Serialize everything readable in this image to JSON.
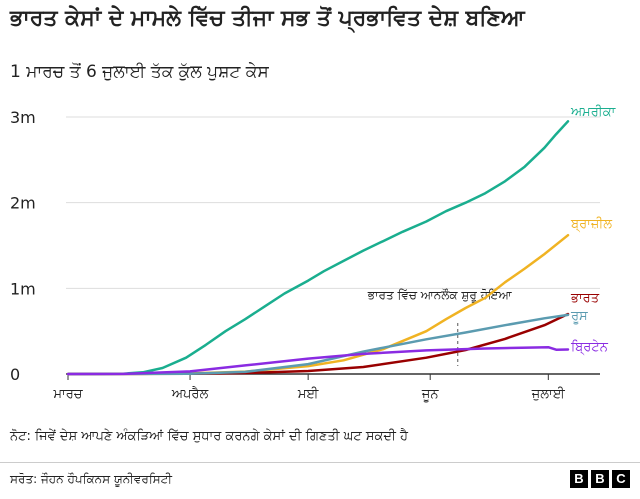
{
  "header": {
    "title": "ਭਾਰਤ ਕੇਸਾਂ ਦੇ ਮਾਮਲੇ ਵਿੱਚ ਤੀਜਾ ਸਭ ਤੋਂ ਪ੍ਰਭਾਵਿਤ ਦੇਸ਼ ਬਣਿਆ",
    "subtitle": "1 ਮਾਰਚ ਤੋਂ 6 ਜੁਲਾਈ ਤੱਕ ਕੁੱਲ ਪੁਸ਼ਟ ਕੇਸ"
  },
  "footer": {
    "note": "ਨੋਟ: ਜਿਵੇਂ ਦੇਸ਼ ਆਪਣੇ ਅੰਕੜਿਆਂ ਵਿੱਚ ਸੁਧਾਰ ਕਰਨਗੇ ਕੇਸਾਂ ਦੀ ਗਿਣਤੀ ਘਟ ਸਕਦੀ ਹੈ",
    "source": "ਸਰੋਤ: ਜੌਹਨ ਹੌਪਕਿਨਸ ਯੂਨੀਵਰਸਿਟੀ",
    "logo": [
      "B",
      "B",
      "C"
    ]
  },
  "chart_data": {
    "type": "line",
    "x_unit": "date",
    "x_range": [
      "2020-03-01",
      "2020-07-06"
    ],
    "ylim": [
      0,
      3000000
    ],
    "y_ticks": [
      {
        "value": 0,
        "label": "0"
      },
      {
        "value": 1000000,
        "label": "1m"
      },
      {
        "value": 2000000,
        "label": "2m"
      },
      {
        "value": 3000000,
        "label": "3m"
      }
    ],
    "x_ticks": [
      {
        "date": "2020-03-01",
        "label": "ਮਾਰਚ"
      },
      {
        "date": "2020-04-01",
        "label": "ਅਪਰੈਲ"
      },
      {
        "date": "2020-05-01",
        "label": "ਮਈ"
      },
      {
        "date": "2020-06-01",
        "label": "ਜੂਨ"
      },
      {
        "date": "2020-07-01",
        "label": "ਜੁਲਾਈ"
      }
    ],
    "grid": "horizontal",
    "annotation": {
      "date": "2020-06-08",
      "text": "ਭਾਰਤ ਵਿੱਚ ਆਨਲੌਕ ਸ਼ੁਰੂ ਹੋਇਆ"
    },
    "series": [
      {
        "name": "ਅਮਰੀਕਾ",
        "color": "#1aae8f",
        "points": [
          [
            "2020-03-01",
            0
          ],
          [
            "2020-03-10",
            1000
          ],
          [
            "2020-03-15",
            4000
          ],
          [
            "2020-03-20",
            20000
          ],
          [
            "2020-03-25",
            70000
          ],
          [
            "2020-03-31",
            190000
          ],
          [
            "2020-04-05",
            340000
          ],
          [
            "2020-04-10",
            500000
          ],
          [
            "2020-04-15",
            640000
          ],
          [
            "2020-04-20",
            790000
          ],
          [
            "2020-04-25",
            940000
          ],
          [
            "2020-05-01",
            1090000
          ],
          [
            "2020-05-05",
            1200000
          ],
          [
            "2020-05-10",
            1320000
          ],
          [
            "2020-05-15",
            1440000
          ],
          [
            "2020-05-20",
            1550000
          ],
          [
            "2020-05-25",
            1660000
          ],
          [
            "2020-05-31",
            1780000
          ],
          [
            "2020-06-05",
            1900000
          ],
          [
            "2020-06-10",
            2000000
          ],
          [
            "2020-06-15",
            2110000
          ],
          [
            "2020-06-20",
            2250000
          ],
          [
            "2020-06-25",
            2420000
          ],
          [
            "2020-06-30",
            2640000
          ],
          [
            "2020-07-03",
            2800000
          ],
          [
            "2020-07-06",
            2950000
          ]
        ]
      },
      {
        "name": "ਬ੍ਰਾਜ਼ੀਲ",
        "color": "#f0b323",
        "points": [
          [
            "2020-03-01",
            0
          ],
          [
            "2020-03-20",
            900
          ],
          [
            "2020-04-01",
            6800
          ],
          [
            "2020-04-15",
            28000
          ],
          [
            "2020-05-01",
            92000
          ],
          [
            "2020-05-10",
            160000
          ],
          [
            "2020-05-20",
            290000
          ],
          [
            "2020-05-31",
            500000
          ],
          [
            "2020-06-05",
            640000
          ],
          [
            "2020-06-10",
            770000
          ],
          [
            "2020-06-15",
            890000
          ],
          [
            "2020-06-20",
            1070000
          ],
          [
            "2020-06-25",
            1230000
          ],
          [
            "2020-06-30",
            1400000
          ],
          [
            "2020-07-06",
            1620000
          ]
        ]
      },
      {
        "name": "ਭਾਰਤ",
        "color": "#990000",
        "points": [
          [
            "2020-03-01",
            0
          ],
          [
            "2020-04-01",
            1800
          ],
          [
            "2020-04-15",
            12000
          ],
          [
            "2020-05-01",
            35000
          ],
          [
            "2020-05-15",
            82000
          ],
          [
            "2020-05-31",
            190000
          ],
          [
            "2020-06-10",
            280000
          ],
          [
            "2020-06-20",
            410000
          ],
          [
            "2020-06-30",
            570000
          ],
          [
            "2020-07-06",
            700000
          ]
        ]
      },
      {
        "name": "ਰੂਸ",
        "color": "#5b9bb0",
        "points": [
          [
            "2020-03-01",
            0
          ],
          [
            "2020-04-01",
            2800
          ],
          [
            "2020-04-15",
            25000
          ],
          [
            "2020-05-01",
            115000
          ],
          [
            "2020-05-15",
            262000
          ],
          [
            "2020-05-31",
            405000
          ],
          [
            "2020-06-10",
            485000
          ],
          [
            "2020-06-20",
            570000
          ],
          [
            "2020-06-30",
            650000
          ],
          [
            "2020-07-06",
            690000
          ]
        ]
      },
      {
        "name": "ਬ੍ਰਿਟੇਨ",
        "color": "#8a2be2",
        "points": [
          [
            "2020-03-01",
            0
          ],
          [
            "2020-03-15",
            1400
          ],
          [
            "2020-04-01",
            30000
          ],
          [
            "2020-04-15",
            100000
          ],
          [
            "2020-05-01",
            180000
          ],
          [
            "2020-05-15",
            235000
          ],
          [
            "2020-05-31",
            275000
          ],
          [
            "2020-06-15",
            298000
          ],
          [
            "2020-07-01",
            313000
          ],
          [
            "2020-07-03",
            284000
          ],
          [
            "2020-07-06",
            286000
          ]
        ]
      }
    ]
  }
}
